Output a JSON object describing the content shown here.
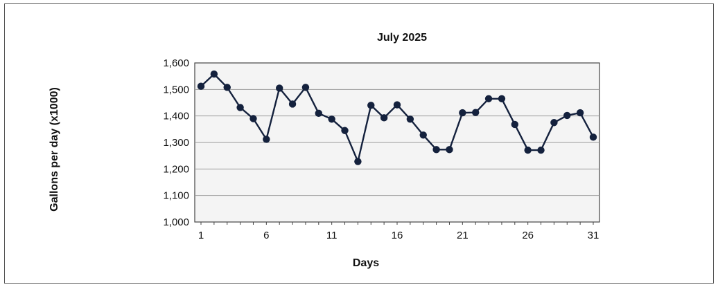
{
  "chart_data": {
    "type": "line",
    "title": "July  2025",
    "xlabel": "Days",
    "ylabel": "Gallons per day  (x1000)",
    "ylim": [
      1000,
      1600
    ],
    "yticks": [
      1000,
      1100,
      1200,
      1300,
      1400,
      1500,
      1600
    ],
    "ytick_labels": [
      "1,000",
      "1,100",
      "1,200",
      "1,300",
      "1,400",
      "1,500",
      "1,600"
    ],
    "xlim": [
      1,
      31
    ],
    "xticks": [
      1,
      6,
      11,
      16,
      21,
      26,
      31
    ],
    "xtick_labels": [
      "1",
      "6",
      "11",
      "16",
      "21",
      "26",
      "31"
    ],
    "grid": true,
    "x": [
      1,
      2,
      3,
      4,
      5,
      6,
      7,
      8,
      9,
      10,
      11,
      12,
      13,
      14,
      15,
      16,
      17,
      18,
      19,
      20,
      21,
      22,
      23,
      24,
      25,
      26,
      27,
      28,
      29,
      30,
      31
    ],
    "series": [
      {
        "values": [
          1512,
          1558,
          1508,
          1432,
          1390,
          1312,
          1505,
          1445,
          1508,
          1410,
          1388,
          1345,
          1228,
          1440,
          1393,
          1442,
          1388,
          1328,
          1273,
          1273,
          1412,
          1413,
          1465,
          1465,
          1368,
          1271,
          1271,
          1375,
          1402,
          1412,
          1320
        ]
      }
    ],
    "colors": {
      "line": "#14213d",
      "plot_bg": "#f4f4f4",
      "grid": "#9a9a9a"
    }
  }
}
